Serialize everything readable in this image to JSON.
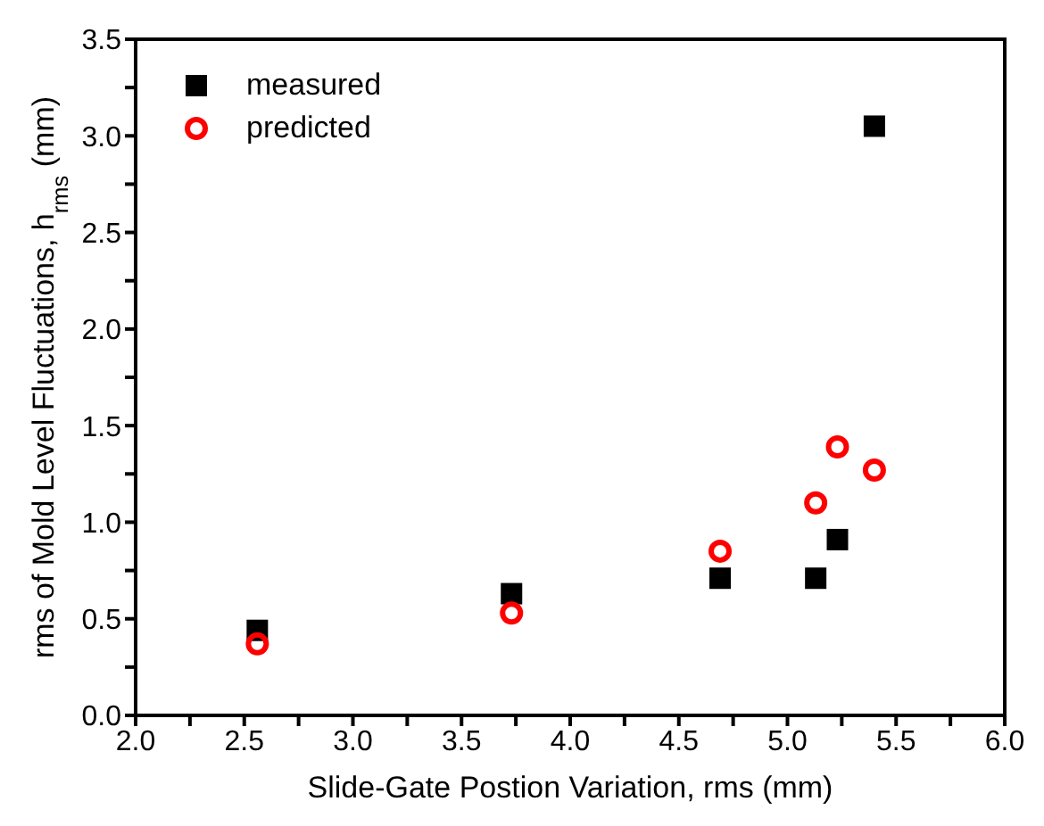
{
  "chart_data": {
    "type": "scatter",
    "xlabel": "Slide-Gate Postion Variation, rms (mm)",
    "ylabel": "rms of Mold Level Fluctuations, h$_{rms}$ (mm)",
    "x": [
      2.56,
      3.73,
      4.69,
      5.13,
      5.23,
      5.4
    ],
    "series": [
      {
        "name": "measured",
        "color": "#000000",
        "marker": "square",
        "values": [
          0.44,
          0.63,
          0.71,
          0.71,
          0.91,
          3.05
        ]
      },
      {
        "name": "predicted",
        "color": "#ff0000",
        "marker": "circle",
        "values": [
          0.37,
          0.53,
          0.85,
          1.1,
          1.39,
          1.27
        ]
      }
    ],
    "xlim": [
      2.0,
      6.0
    ],
    "xticks": [
      {
        "value": 2.0,
        "label": "2.0"
      },
      {
        "value": 2.25,
        "label": null
      },
      {
        "value": 2.5,
        "label": "2.5"
      },
      {
        "value": 2.75,
        "label": null
      },
      {
        "value": 3.0,
        "label": "3.0"
      },
      {
        "value": 3.25,
        "label": null
      },
      {
        "value": 3.5,
        "label": "3.5"
      },
      {
        "value": 3.75,
        "label": null
      },
      {
        "value": 4.0,
        "label": "4.0"
      },
      {
        "value": 4.25,
        "label": null
      },
      {
        "value": 4.5,
        "label": "4.5"
      },
      {
        "value": 4.75,
        "label": null
      },
      {
        "value": 5.0,
        "label": "5.0"
      },
      {
        "value": 5.25,
        "label": null
      },
      {
        "value": 5.5,
        "label": "5.5"
      },
      {
        "value": 5.75,
        "label": null
      },
      {
        "value": 6.0,
        "label": "6.0"
      }
    ],
    "ylim": [
      0.0,
      3.5
    ],
    "yticks": [
      {
        "value": 0.0,
        "label": "0.0"
      },
      {
        "value": 0.25,
        "label": null
      },
      {
        "value": 0.5,
        "label": "0.5"
      },
      {
        "value": 0.75,
        "label": null
      },
      {
        "value": 1.0,
        "label": "1.0"
      },
      {
        "value": 1.25,
        "label": null
      },
      {
        "value": 1.5,
        "label": "1.5"
      },
      {
        "value": 1.75,
        "label": null
      },
      {
        "value": 2.0,
        "label": "2.0"
      },
      {
        "value": 2.25,
        "label": null
      },
      {
        "value": 2.5,
        "label": "2.5"
      },
      {
        "value": 2.75,
        "label": null
      },
      {
        "value": 3.0,
        "label": "3.0"
      },
      {
        "value": 3.25,
        "label": null
      },
      {
        "value": 3.5,
        "label": "3.5"
      }
    ],
    "grid": false,
    "legend": "top left"
  }
}
